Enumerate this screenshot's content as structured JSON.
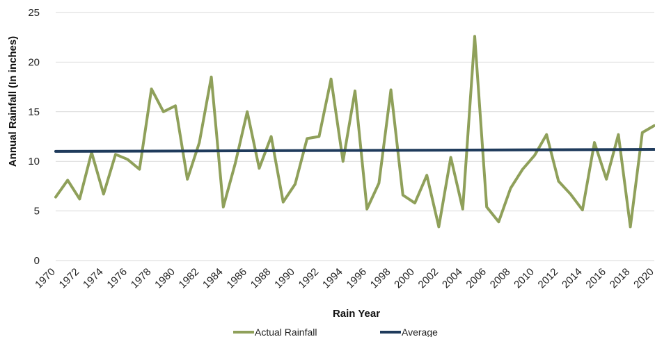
{
  "chart_data": {
    "type": "line",
    "title": "",
    "xlabel": "Rain Year",
    "ylabel": "Annual Rainfall (In inches)",
    "ylim": [
      0,
      25
    ],
    "yticks": [
      0,
      5,
      10,
      15,
      20,
      25
    ],
    "xlim": [
      1970,
      2020
    ],
    "xticks": [
      1970,
      1972,
      1974,
      1976,
      1978,
      1980,
      1982,
      1984,
      1986,
      1988,
      1990,
      1992,
      1994,
      1996,
      1998,
      2000,
      2002,
      2004,
      2006,
      2008,
      2010,
      2012,
      2014,
      2016,
      2018,
      2020
    ],
    "grid": true,
    "legend_position": "bottom",
    "series": [
      {
        "name": "Actual Rainfall",
        "color": "#8fa05a",
        "x": [
          1970,
          1971,
          1972,
          1973,
          1974,
          1975,
          1976,
          1977,
          1978,
          1979,
          1980,
          1981,
          1982,
          1983,
          1984,
          1985,
          1986,
          1987,
          1988,
          1989,
          1990,
          1991,
          1992,
          1993,
          1994,
          1995,
          1996,
          1997,
          1998,
          1999,
          2000,
          2001,
          2002,
          2003,
          2004,
          2005,
          2006,
          2007,
          2008,
          2009,
          2010,
          2011,
          2012,
          2013,
          2014,
          2015,
          2016,
          2017,
          2018,
          2019,
          2020
        ],
        "values": [
          6.4,
          8.1,
          6.2,
          10.9,
          6.7,
          10.7,
          10.2,
          9.2,
          17.3,
          15.0,
          15.6,
          8.2,
          11.9,
          18.5,
          5.4,
          9.8,
          15.0,
          9.3,
          12.5,
          5.9,
          7.7,
          12.3,
          12.5,
          18.3,
          10.0,
          17.1,
          5.2,
          7.8,
          17.2,
          6.6,
          5.8,
          8.6,
          3.4,
          10.4,
          5.2,
          22.6,
          5.4,
          3.9,
          7.3,
          9.2,
          10.6,
          12.7,
          8.0,
          6.7,
          5.1,
          11.9,
          8.2,
          12.7,
          3.4,
          12.9,
          13.6
        ]
      },
      {
        "name": "Average",
        "color": "#1f3b5c",
        "x": [
          1970,
          2020
        ],
        "values": [
          11.0,
          11.2
        ]
      }
    ]
  }
}
